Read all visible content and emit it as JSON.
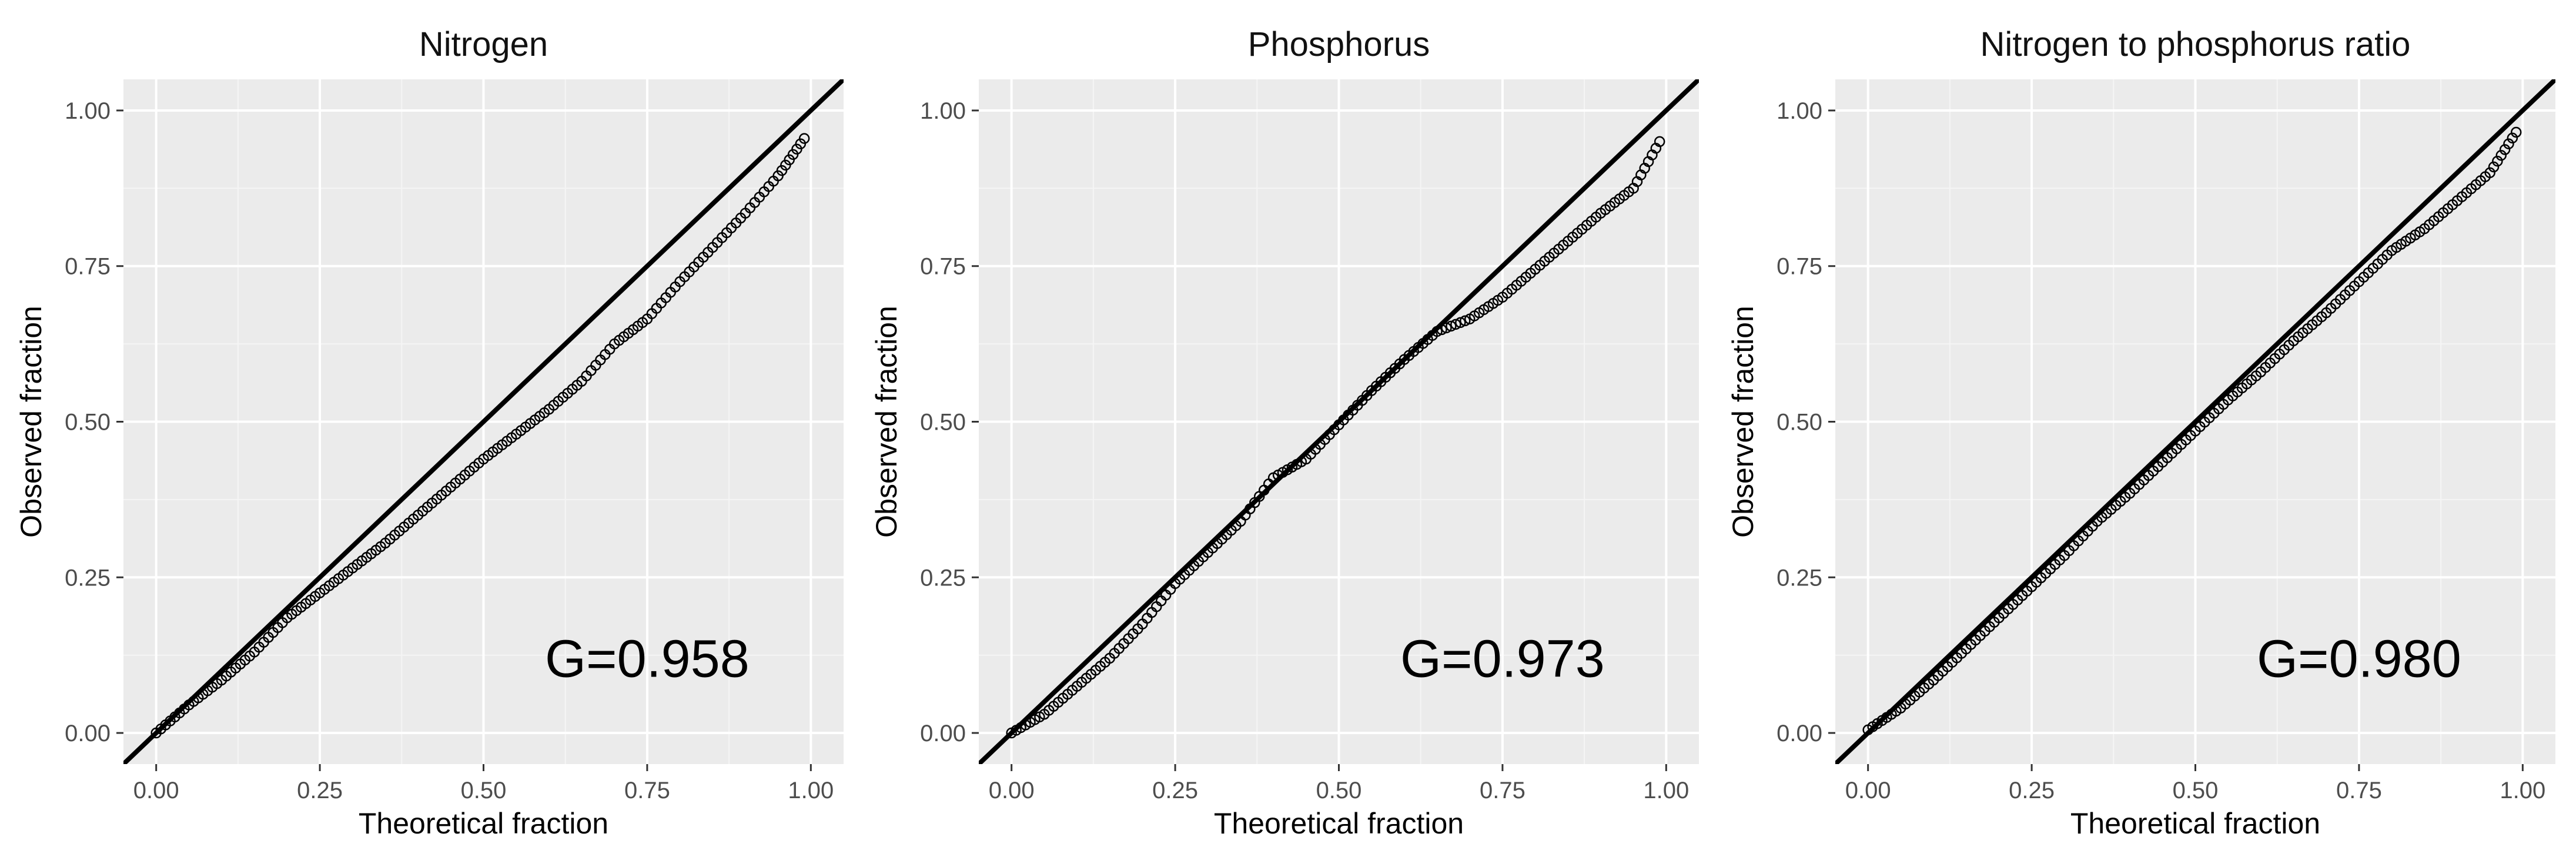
{
  "chart_data": [
    {
      "type": "scatter",
      "title": "Nitrogen",
      "xlabel": "Theoretical fraction",
      "ylabel": "Observed fraction",
      "xlim": [
        -0.05,
        1.05
      ],
      "ylim": [
        -0.05,
        1.05
      ],
      "x_ticks": [
        "0.00",
        "0.25",
        "0.50",
        "0.75",
        "1.00"
      ],
      "y_ticks": [
        "0.00",
        "0.25",
        "0.50",
        "0.75",
        "1.00"
      ],
      "reference_line": {
        "slope": 1,
        "intercept": 0
      },
      "grid": true,
      "annotation": "G=0.958",
      "series": [
        {
          "marker": "open-circle",
          "points": [
            [
              0.0,
              0.0
            ],
            [
              0.05,
              0.045
            ],
            [
              0.1,
              0.085
            ],
            [
              0.15,
              0.13
            ],
            [
              0.2,
              0.185
            ],
            [
              0.25,
              0.225
            ],
            [
              0.3,
              0.265
            ],
            [
              0.35,
              0.305
            ],
            [
              0.4,
              0.35
            ],
            [
              0.45,
              0.395
            ],
            [
              0.5,
              0.44
            ],
            [
              0.55,
              0.48
            ],
            [
              0.6,
              0.52
            ],
            [
              0.65,
              0.565
            ],
            [
              0.7,
              0.625
            ],
            [
              0.75,
              0.665
            ],
            [
              0.8,
              0.725
            ],
            [
              0.85,
              0.78
            ],
            [
              0.9,
              0.835
            ],
            [
              0.95,
              0.895
            ],
            [
              0.99,
              0.955
            ]
          ]
        }
      ]
    },
    {
      "type": "scatter",
      "title": "Phosphorus",
      "xlabel": "Theoretical fraction",
      "ylabel": "Observed fraction",
      "xlim": [
        -0.05,
        1.05
      ],
      "ylim": [
        -0.05,
        1.05
      ],
      "x_ticks": [
        "0.00",
        "0.25",
        "0.50",
        "0.75",
        "1.00"
      ],
      "y_ticks": [
        "0.00",
        "0.25",
        "0.50",
        "0.75",
        "1.00"
      ],
      "reference_line": {
        "slope": 1,
        "intercept": 0
      },
      "grid": true,
      "annotation": "G=0.973",
      "series": [
        {
          "marker": "open-circle",
          "points": [
            [
              0.0,
              0.0
            ],
            [
              0.05,
              0.03
            ],
            [
              0.1,
              0.075
            ],
            [
              0.15,
              0.12
            ],
            [
              0.2,
              0.175
            ],
            [
              0.25,
              0.24
            ],
            [
              0.3,
              0.29
            ],
            [
              0.35,
              0.34
            ],
            [
              0.4,
              0.41
            ],
            [
              0.45,
              0.44
            ],
            [
              0.5,
              0.495
            ],
            [
              0.55,
              0.55
            ],
            [
              0.6,
              0.6
            ],
            [
              0.65,
              0.645
            ],
            [
              0.7,
              0.665
            ],
            [
              0.75,
              0.7
            ],
            [
              0.8,
              0.745
            ],
            [
              0.85,
              0.79
            ],
            [
              0.9,
              0.835
            ],
            [
              0.95,
              0.875
            ],
            [
              0.99,
              0.95
            ]
          ]
        }
      ]
    },
    {
      "type": "scatter",
      "title": "Nitrogen to phosphorus ratio",
      "xlabel": "Theoretical fraction",
      "ylabel": "Observed fraction",
      "xlim": [
        -0.05,
        1.05
      ],
      "ylim": [
        -0.05,
        1.05
      ],
      "x_ticks": [
        "0.00",
        "0.25",
        "0.50",
        "0.75",
        "1.00"
      ],
      "y_ticks": [
        "0.00",
        "0.25",
        "0.50",
        "0.75",
        "1.00"
      ],
      "reference_line": {
        "slope": 1,
        "intercept": 0
      },
      "grid": true,
      "annotation": "G=0.980",
      "series": [
        {
          "marker": "open-circle",
          "points": [
            [
              0.0,
              0.005
            ],
            [
              0.05,
              0.04
            ],
            [
              0.1,
              0.085
            ],
            [
              0.15,
              0.135
            ],
            [
              0.2,
              0.185
            ],
            [
              0.25,
              0.235
            ],
            [
              0.3,
              0.285
            ],
            [
              0.35,
              0.34
            ],
            [
              0.4,
              0.385
            ],
            [
              0.45,
              0.435
            ],
            [
              0.5,
              0.485
            ],
            [
              0.55,
              0.535
            ],
            [
              0.6,
              0.58
            ],
            [
              0.65,
              0.63
            ],
            [
              0.7,
              0.675
            ],
            [
              0.75,
              0.725
            ],
            [
              0.8,
              0.775
            ],
            [
              0.85,
              0.81
            ],
            [
              0.9,
              0.855
            ],
            [
              0.95,
              0.9
            ],
            [
              0.99,
              0.965
            ]
          ]
        }
      ]
    }
  ]
}
